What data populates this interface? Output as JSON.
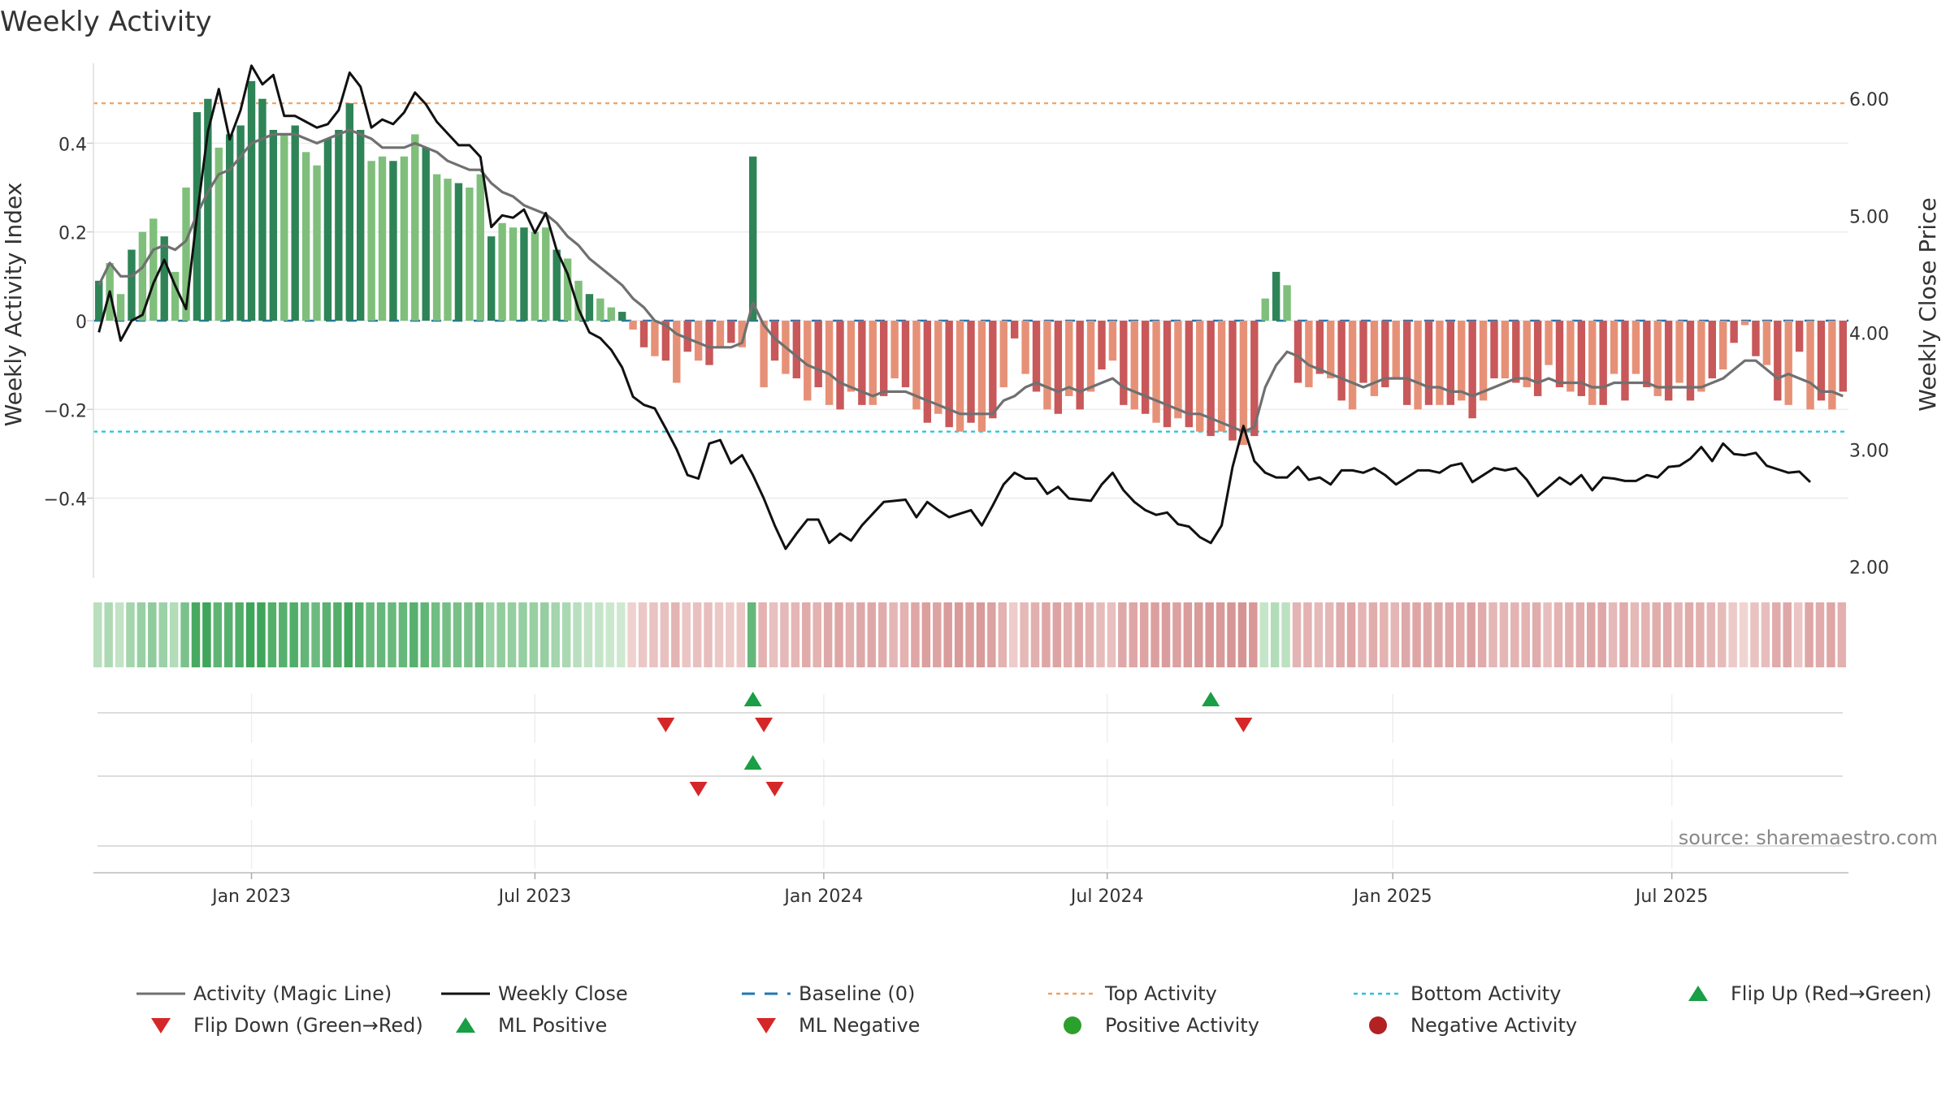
{
  "chart_data": {
    "type": "bar",
    "title": "Weekly Activity",
    "ylabel": "Weekly Activity Index",
    "y2label": "Weekly Close Price",
    "source": "source: sharemaestro.com",
    "ylim": [
      -0.58,
      0.58
    ],
    "y2lim": [
      1.9,
      6.3
    ],
    "yticks": [
      0.4,
      0.2,
      0,
      -0.2,
      -0.4
    ],
    "ytick_labels": [
      "0.4",
      "0.2",
      "0",
      "−0.2",
      "−0.4"
    ],
    "y2ticks": [
      6,
      5,
      4,
      3,
      2
    ],
    "y2tick_labels": [
      "6.00",
      "5.00",
      "4.00",
      "3.00",
      "2.00"
    ],
    "xticks": [
      {
        "label": "Jan 2023",
        "week": 14
      },
      {
        "label": "Jul 2023",
        "week": 40
      },
      {
        "label": "Jan 2024",
        "week": 66.5
      },
      {
        "label": "Jul 2024",
        "week": 92.5
      },
      {
        "label": "Jan 2025",
        "week": 118.7
      },
      {
        "label": "Jul 2025",
        "week": 144.3
      }
    ],
    "top_activity": 0.49,
    "bottom_activity": -0.25,
    "baseline": 0,
    "colors": {
      "pos_dark": "#2e8457",
      "pos_light": "#7fbf7b",
      "neg_dark": "#c8585a",
      "neg_light": "#e69177",
      "magic_line": "#707070",
      "close_line": "#111111",
      "baseline": "#1f77b4",
      "top": "#f0a060",
      "bottom": "#22c6d8",
      "up_marker": "#1a9e46",
      "down_marker": "#d62728",
      "pos_dot": "#2ca02c",
      "neg_dot": "#b22222"
    },
    "activity": [
      0.09,
      0.13,
      0.06,
      0.16,
      0.2,
      0.23,
      0.19,
      0.11,
      0.3,
      0.47,
      0.5,
      0.39,
      0.42,
      0.44,
      0.54,
      0.5,
      0.43,
      0.42,
      0.44,
      0.38,
      0.35,
      0.41,
      0.43,
      0.49,
      0.43,
      0.36,
      0.37,
      0.36,
      0.37,
      0.42,
      0.39,
      0.33,
      0.32,
      0.31,
      0.3,
      0.33,
      0.19,
      0.22,
      0.21,
      0.21,
      0.2,
      0.21,
      0.16,
      0.14,
      0.09,
      0.06,
      0.05,
      0.03,
      0.02,
      -0.02,
      -0.06,
      -0.08,
      -0.09,
      -0.14,
      -0.07,
      -0.09,
      -0.1,
      -0.06,
      -0.05,
      -0.06,
      0.37,
      -0.15,
      -0.09,
      -0.12,
      -0.13,
      -0.18,
      -0.15,
      -0.19,
      -0.2,
      -0.16,
      -0.19,
      -0.19,
      -0.17,
      -0.13,
      -0.15,
      -0.2,
      -0.23,
      -0.21,
      -0.24,
      -0.25,
      -0.23,
      -0.25,
      -0.22,
      -0.15,
      -0.04,
      -0.12,
      -0.16,
      -0.2,
      -0.21,
      -0.17,
      -0.2,
      -0.16,
      -0.11,
      -0.09,
      -0.19,
      -0.2,
      -0.21,
      -0.23,
      -0.24,
      -0.22,
      -0.24,
      -0.25,
      -0.26,
      -0.25,
      -0.27,
      -0.28,
      -0.26,
      0.05,
      0.11,
      0.08,
      -0.14,
      -0.15,
      -0.12,
      -0.13,
      -0.18,
      -0.2,
      -0.14,
      -0.17,
      -0.15,
      -0.13,
      -0.19,
      -0.2,
      -0.19,
      -0.19,
      -0.19,
      -0.18,
      -0.22,
      -0.18,
      -0.13,
      -0.13,
      -0.14,
      -0.15,
      -0.17,
      -0.1,
      -0.15,
      -0.16,
      -0.17,
      -0.19,
      -0.19,
      -0.12,
      -0.18,
      -0.12,
      -0.15,
      -0.17,
      -0.18,
      -0.14,
      -0.18,
      -0.16,
      -0.13,
      -0.11,
      -0.05,
      -0.01,
      -0.08,
      -0.1,
      -0.18,
      -0.19,
      -0.07,
      -0.2,
      -0.18,
      -0.2,
      -0.16
    ],
    "magic_line": [
      0.08,
      0.13,
      0.1,
      0.1,
      0.12,
      0.16,
      0.17,
      0.16,
      0.18,
      0.24,
      0.29,
      0.33,
      0.34,
      0.37,
      0.4,
      0.41,
      0.42,
      0.42,
      0.42,
      0.41,
      0.4,
      0.41,
      0.42,
      0.43,
      0.42,
      0.41,
      0.39,
      0.39,
      0.39,
      0.4,
      0.39,
      0.38,
      0.36,
      0.35,
      0.34,
      0.34,
      0.31,
      0.29,
      0.28,
      0.26,
      0.25,
      0.24,
      0.22,
      0.19,
      0.17,
      0.14,
      0.12,
      0.1,
      0.08,
      0.05,
      0.03,
      0.0,
      -0.01,
      -0.03,
      -0.04,
      -0.05,
      -0.06,
      -0.06,
      -0.06,
      -0.05,
      0.04,
      -0.01,
      -0.04,
      -0.06,
      -0.08,
      -0.1,
      -0.11,
      -0.12,
      -0.14,
      -0.15,
      -0.16,
      -0.17,
      -0.16,
      -0.16,
      -0.16,
      -0.17,
      -0.18,
      -0.19,
      -0.2,
      -0.21,
      -0.21,
      -0.21,
      -0.21,
      -0.18,
      -0.17,
      -0.15,
      -0.14,
      -0.15,
      -0.16,
      -0.15,
      -0.16,
      -0.15,
      -0.14,
      -0.13,
      -0.15,
      -0.16,
      -0.17,
      -0.18,
      -0.19,
      -0.2,
      -0.21,
      -0.21,
      -0.22,
      -0.23,
      -0.24,
      -0.25,
      -0.24,
      -0.15,
      -0.1,
      -0.07,
      -0.08,
      -0.1,
      -0.11,
      -0.12,
      -0.13,
      -0.14,
      -0.15,
      -0.14,
      -0.13,
      -0.13,
      -0.13,
      -0.14,
      -0.15,
      -0.15,
      -0.16,
      -0.16,
      -0.17,
      -0.16,
      -0.15,
      -0.14,
      -0.13,
      -0.13,
      -0.14,
      -0.13,
      -0.14,
      -0.14,
      -0.14,
      -0.15,
      -0.15,
      -0.14,
      -0.14,
      -0.14,
      -0.14,
      -0.15,
      -0.15,
      -0.15,
      -0.15,
      -0.15,
      -0.14,
      -0.13,
      -0.11,
      -0.09,
      -0.09,
      -0.11,
      -0.13,
      -0.12,
      -0.13,
      -0.14,
      -0.16,
      -0.16,
      -0.17
    ],
    "close": [
      4.0,
      4.35,
      3.93,
      4.1,
      4.15,
      4.42,
      4.62,
      4.4,
      4.2,
      5.0,
      5.72,
      6.08,
      5.65,
      5.9,
      6.28,
      6.12,
      6.2,
      5.85,
      5.85,
      5.8,
      5.75,
      5.78,
      5.9,
      6.22,
      6.1,
      5.75,
      5.82,
      5.78,
      5.88,
      6.05,
      5.95,
      5.8,
      5.7,
      5.6,
      5.6,
      5.5,
      4.9,
      5.0,
      4.98,
      5.05,
      4.85,
      5.02,
      4.7,
      4.5,
      4.2,
      4.0,
      3.95,
      3.85,
      3.7,
      3.45,
      3.38,
      3.35,
      3.18,
      3.0,
      2.78,
      2.75,
      3.05,
      3.08,
      2.88,
      2.95,
      2.78,
      2.58,
      2.35,
      2.15,
      2.28,
      2.4,
      2.4,
      2.2,
      2.28,
      2.22,
      2.35,
      2.45,
      2.55,
      2.56,
      2.57,
      2.42,
      2.55,
      2.48,
      2.42,
      2.45,
      2.48,
      2.35,
      2.52,
      2.7,
      2.8,
      2.75,
      2.75,
      2.62,
      2.68,
      2.58,
      2.57,
      2.56,
      2.7,
      2.8,
      2.65,
      2.55,
      2.48,
      2.44,
      2.46,
      2.36,
      2.34,
      2.25,
      2.2,
      2.35,
      2.85,
      3.2,
      2.9,
      2.8,
      2.76,
      2.76,
      2.85,
      2.74,
      2.76,
      2.7,
      2.82,
      2.82,
      2.8,
      2.84,
      2.78,
      2.7,
      2.76,
      2.82,
      2.82,
      2.8,
      2.86,
      2.88,
      2.72,
      2.78,
      2.84,
      2.82,
      2.84,
      2.74,
      2.6,
      2.68,
      2.76,
      2.7,
      2.78,
      2.65,
      2.76,
      2.75,
      2.73,
      2.73,
      2.78,
      2.76,
      2.85,
      2.86,
      2.92,
      3.02,
      2.9,
      3.05,
      2.96,
      2.95,
      2.97,
      2.86,
      2.83,
      2.8,
      2.81,
      2.72
    ],
    "flip_up_row1": [
      60,
      102
    ],
    "flip_down_row1": [
      52,
      61,
      105
    ],
    "flip_up_row2": [
      60
    ],
    "flip_down_row2": [
      55,
      62
    ],
    "legend": [
      {
        "label": "Activity (Magic Line)",
        "kind": "line",
        "color": "#707070"
      },
      {
        "label": "Weekly Close",
        "kind": "line",
        "color": "#111111"
      },
      {
        "label": "Baseline (0)",
        "kind": "dash",
        "color": "#1f77b4"
      },
      {
        "label": "Top Activity",
        "kind": "dot-line",
        "color": "#f0a060"
      },
      {
        "label": "Bottom Activity",
        "kind": "dot-line",
        "color": "#22c6d8"
      },
      {
        "label": "Flip Up (Red→Green)",
        "kind": "tri-up",
        "color": "#1a9e46"
      },
      {
        "label": "Flip Down (Green→Red)",
        "kind": "tri-down",
        "color": "#d62728"
      },
      {
        "label": "ML Positive",
        "kind": "tri-up",
        "color": "#1a9e46"
      },
      {
        "label": "ML Negative",
        "kind": "tri-down",
        "color": "#d62728"
      },
      {
        "label": "Positive Activity",
        "kind": "circle",
        "color": "#2ca02c"
      },
      {
        "label": "Negative Activity",
        "kind": "circle",
        "color": "#b22222"
      }
    ]
  }
}
